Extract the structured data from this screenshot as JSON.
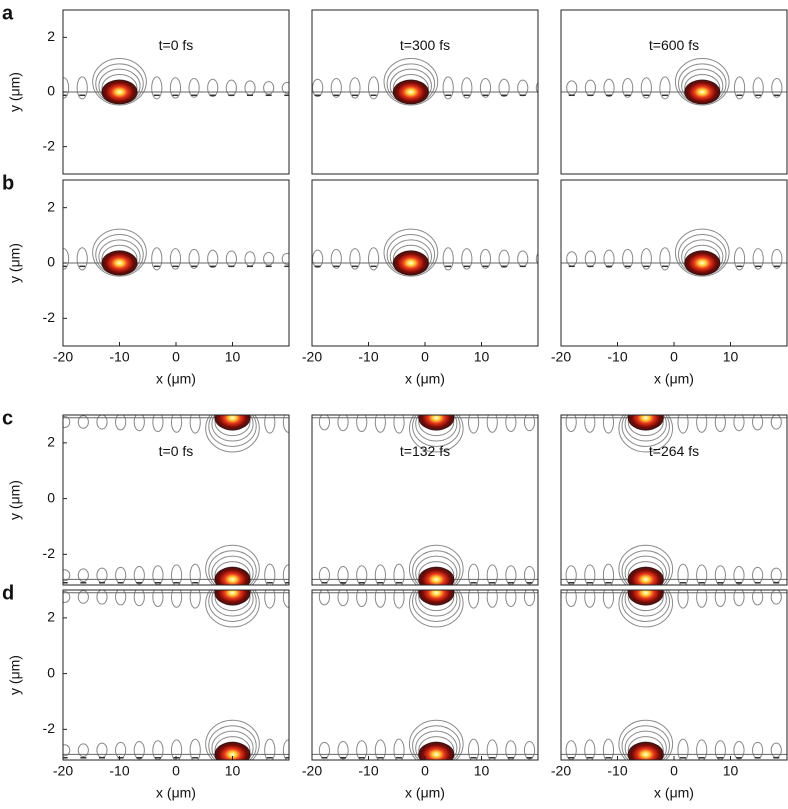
{
  "chart_data": [
    {
      "type": "heatmap",
      "panel": "a",
      "title": "t=0 fs",
      "ylabel": "y (μm)",
      "xlim": [
        -20,
        20
      ],
      "ylim": [
        -3,
        3
      ],
      "yticks": [
        -2,
        0,
        2
      ],
      "x": [
        -10
      ],
      "y": [
        0
      ]
    },
    {
      "type": "heatmap",
      "title": "t=300 fs",
      "xlim": [
        -20,
        20
      ],
      "ylim": [
        -3,
        3
      ],
      "x": [
        -2.5
      ],
      "y": [
        0
      ]
    },
    {
      "type": "heatmap",
      "title": "t=600 fs",
      "xlim": [
        -20,
        20
      ],
      "ylim": [
        -3,
        3
      ],
      "x": [
        5
      ],
      "y": [
        0
      ]
    },
    {
      "type": "heatmap",
      "panel": "b",
      "ylabel": "y (μm)",
      "xlabel": "x (μm)",
      "xlim": [
        -20,
        20
      ],
      "ylim": [
        -3,
        3
      ],
      "xticks": [
        -20,
        -10,
        0,
        10
      ],
      "yticks": [
        -2,
        0,
        2
      ],
      "x": [
        -10
      ],
      "y": [
        0
      ]
    },
    {
      "type": "heatmap",
      "xlabel": "x (μm)",
      "xlim": [
        -20,
        20
      ],
      "ylim": [
        -3,
        3
      ],
      "xticks": [
        -20,
        -10,
        0,
        10
      ],
      "x": [
        -2.5
      ],
      "y": [
        0
      ]
    },
    {
      "type": "heatmap",
      "xlabel": "x (μm)",
      "xlim": [
        -20,
        20
      ],
      "ylim": [
        -3,
        3
      ],
      "xticks": [
        -20,
        -10,
        0,
        10
      ],
      "x": [
        5
      ],
      "y": [
        0
      ]
    },
    {
      "type": "heatmap",
      "panel": "c",
      "title": "t=0 fs",
      "ylabel": "y (μm)",
      "xlim": [
        -20,
        20
      ],
      "ylim": [
        -3.1,
        3
      ],
      "yticks": [
        -2,
        0,
        2
      ],
      "x": [
        10,
        10
      ],
      "y": [
        2.9,
        -2.9
      ]
    },
    {
      "type": "heatmap",
      "title": "t=132 fs",
      "xlim": [
        -20,
        20
      ],
      "ylim": [
        -3.1,
        3
      ],
      "x": [
        2,
        2
      ],
      "y": [
        2.9,
        -2.9
      ]
    },
    {
      "type": "heatmap",
      "title": "t=264 fs",
      "xlim": [
        -20,
        20
      ],
      "ylim": [
        -3.1,
        3
      ],
      "x": [
        -5,
        -5
      ],
      "y": [
        2.9,
        -2.9
      ]
    },
    {
      "type": "heatmap",
      "panel": "d",
      "ylabel": "y (μm)",
      "xlabel": "x (μm)",
      "xlim": [
        -20,
        20
      ],
      "ylim": [
        -3.1,
        3
      ],
      "xticks": [
        -20,
        -10,
        0,
        10
      ],
      "yticks": [
        -2,
        0,
        2
      ],
      "x": [
        10,
        10
      ],
      "y": [
        2.9,
        -2.9
      ]
    },
    {
      "type": "heatmap",
      "xlabel": "x (μm)",
      "xlim": [
        -20,
        20
      ],
      "ylim": [
        -3.1,
        3
      ],
      "xticks": [
        -20,
        -10,
        0,
        10
      ],
      "x": [
        2,
        2
      ],
      "y": [
        2.9,
        -2.9
      ]
    },
    {
      "type": "heatmap",
      "xlabel": "x (μm)",
      "xlim": [
        -20,
        20
      ],
      "ylim": [
        -3.1,
        3
      ],
      "xticks": [
        -20,
        -10,
        0,
        10
      ],
      "x": [
        -5,
        -5
      ],
      "y": [
        2.9,
        -2.9
      ]
    }
  ]
}
